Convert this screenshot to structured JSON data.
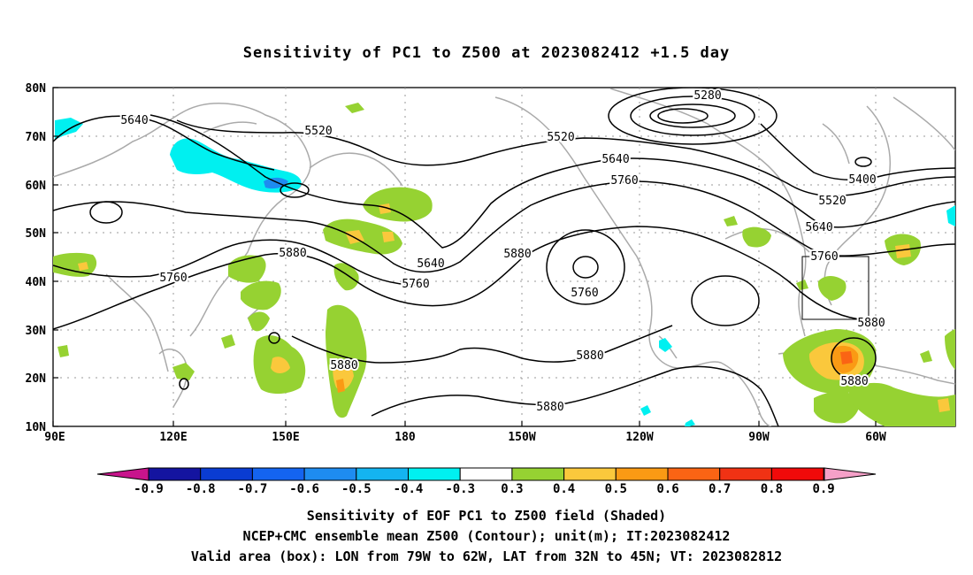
{
  "title": "Sensitivity of PC1 to Z500 at 2023082412 +1.5 day",
  "lat_labels": [
    "80N",
    "70N",
    "60N",
    "50N",
    "40N",
    "30N",
    "20N",
    "10N"
  ],
  "lon_labels": [
    "90E",
    "120E",
    "150E",
    "180",
    "150W",
    "120W",
    "90W",
    "60W"
  ],
  "contour_labels": [
    "5280",
    "5400",
    "5520",
    "5520",
    "5520",
    "5640",
    "5640",
    "5640",
    "5640",
    "5760",
    "5760",
    "5760",
    "5760",
    "5760",
    "5880",
    "5880",
    "5880",
    "5880",
    "5880",
    "5880",
    "5880"
  ],
  "colorbar": {
    "labels": [
      "-0.9",
      "-0.8",
      "-0.7",
      "-0.6",
      "-0.5",
      "-0.4",
      "-0.3",
      "0.3",
      "0.4",
      "0.5",
      "0.6",
      "0.7",
      "0.8",
      "0.9"
    ],
    "colors": [
      "#1414a0",
      "#0a3cd2",
      "#1464f0",
      "#1e8cf0",
      "#14b4f0",
      "#00f0f0",
      "#ffffff",
      "#96d232",
      "#fac83c",
      "#fa9a14",
      "#fa6414",
      "#f03214",
      "#f00a0a"
    ],
    "left_tip_color": "#c8148c",
    "right_tip_color": "#f5a0c8"
  },
  "captions": [
    "Sensitivity of EOF PC1 to Z500 field (Shaded)",
    "NCEP+CMC ensemble mean Z500 (Contour); unit(m); IT:2023082412",
    "Valid area (box): LON from 79W to 62W, LAT from 32N to 45N; VT: 2023082812"
  ]
}
